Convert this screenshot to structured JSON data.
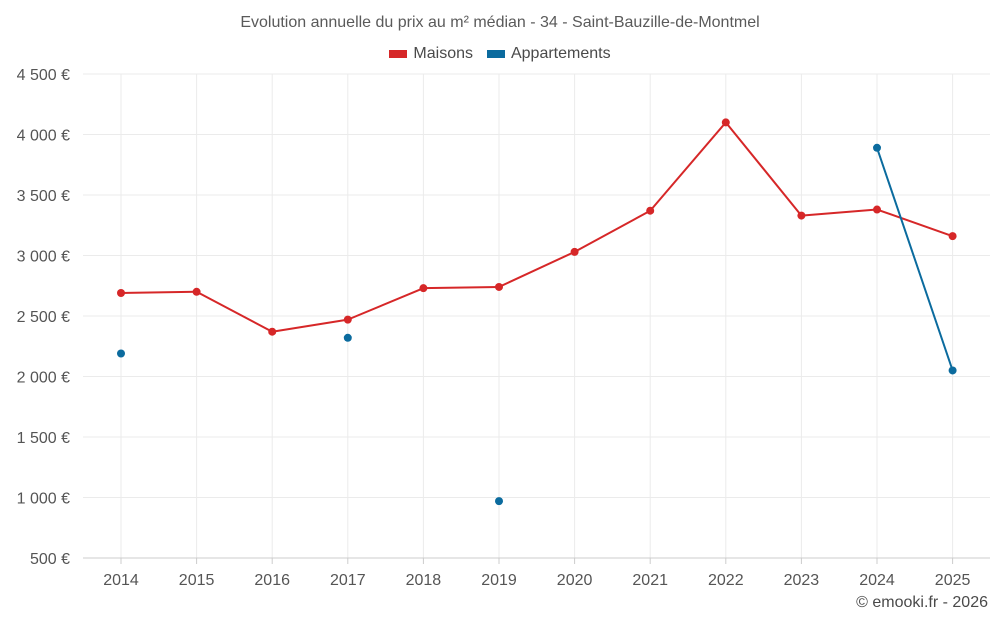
{
  "chart_data": {
    "type": "line",
    "title": "Evolution annuelle du prix au m² médian - 34 - Saint-Bauzille-de-Montmel",
    "categories": [
      "2014",
      "2015",
      "2016",
      "2017",
      "2018",
      "2019",
      "2020",
      "2021",
      "2022",
      "2023",
      "2024",
      "2025"
    ],
    "ylim": [
      500,
      4500
    ],
    "yticks": [
      500,
      1000,
      1500,
      2000,
      2500,
      3000,
      3500,
      4000,
      4500
    ],
    "ytick_labels": [
      "500 €",
      "1 000 €",
      "1 500 €",
      "2 000 €",
      "2 500 €",
      "3 000 €",
      "3 500 €",
      "4 000 €",
      "4 500 €"
    ],
    "grid": true,
    "legend_position": "top-center",
    "series": [
      {
        "name": "Maisons",
        "color": "#d62728",
        "values": [
          2690,
          2700,
          2370,
          2470,
          2730,
          2740,
          3030,
          3370,
          4100,
          3330,
          3380,
          3160
        ]
      },
      {
        "name": "Appartements",
        "color": "#0b6b9e",
        "values": [
          2190,
          null,
          null,
          2320,
          null,
          970,
          null,
          null,
          null,
          null,
          3890,
          2050
        ]
      }
    ]
  },
  "credit": "© emooki.fr - 2026"
}
